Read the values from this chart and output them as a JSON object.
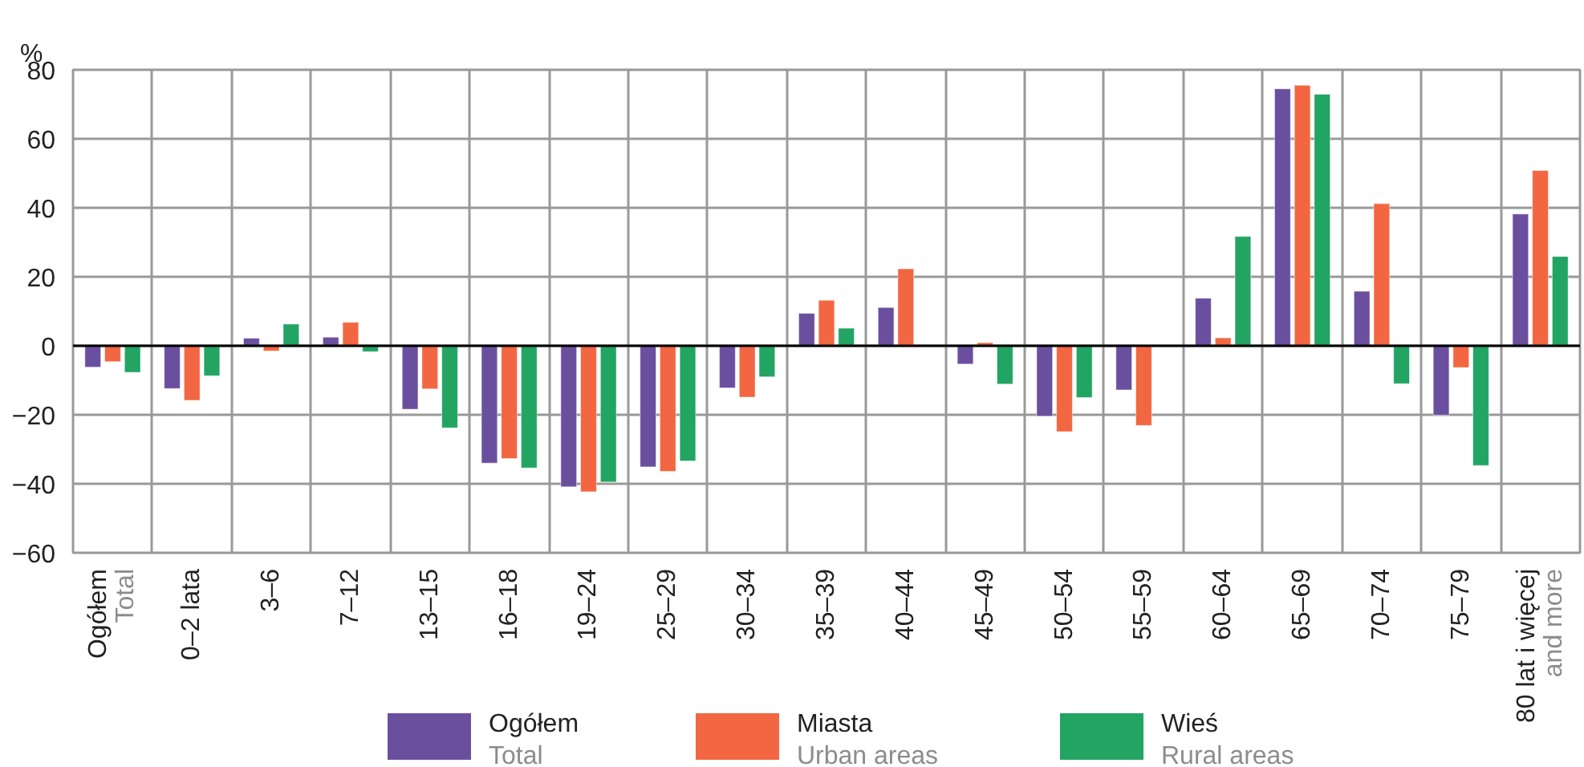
{
  "chart_data": {
    "type": "bar",
    "ylabel": "%",
    "categories": [
      "Ogółem\nTotal",
      "0–2 lata",
      "3–6",
      "7–12",
      "13–15",
      "16–18",
      "19–24",
      "25–29",
      "30–34",
      "35–39",
      "40–44",
      "45–49",
      "50–54",
      "55–59",
      "60–64",
      "65–69",
      "70–74",
      "75–79",
      "80 lat i więcej\nand more"
    ],
    "series": [
      {
        "name": "Ogółem\nTotal",
        "color": "#6b4f9f",
        "values": [
          -6.2,
          -12.4,
          2.2,
          2.5,
          -18.4,
          -34,
          -40.9,
          -35.1,
          -12.2,
          9.4,
          11.1,
          -5.3,
          -20.4,
          -12.8,
          13.8,
          74.5,
          15.8,
          -20.1,
          38.2
        ]
      },
      {
        "name": "Miasta\nUrban areas",
        "color": "#f26641",
        "values": [
          -4.6,
          -15.8,
          -1.5,
          6.8,
          -12.5,
          -32.7,
          -42.3,
          -36.4,
          -14.9,
          13.2,
          22.3,
          0.9,
          -24.9,
          -23.1,
          2.3,
          75.5,
          41.2,
          -6.3,
          50.8
        ]
      },
      {
        "name": "Wieś\nRural areas",
        "color": "#22a463",
        "values": [
          -7.7,
          -8.7,
          6.3,
          -1.7,
          -23.8,
          -35.4,
          -39.5,
          -33.4,
          -9.0,
          5.1,
          null,
          -11.1,
          -15.0,
          null,
          31.7,
          72.9,
          -11.0,
          -34.7,
          25.9
        ]
      }
    ],
    "ylim": [
      -60,
      80
    ],
    "yticks": [
      -60,
      -40,
      -20,
      0,
      20,
      40,
      60,
      80
    ],
    "ref_lines": [
      {
        "axis": "y",
        "value": 0,
        "color": "#000000"
      }
    ],
    "grid": true,
    "legend": "bottom"
  }
}
